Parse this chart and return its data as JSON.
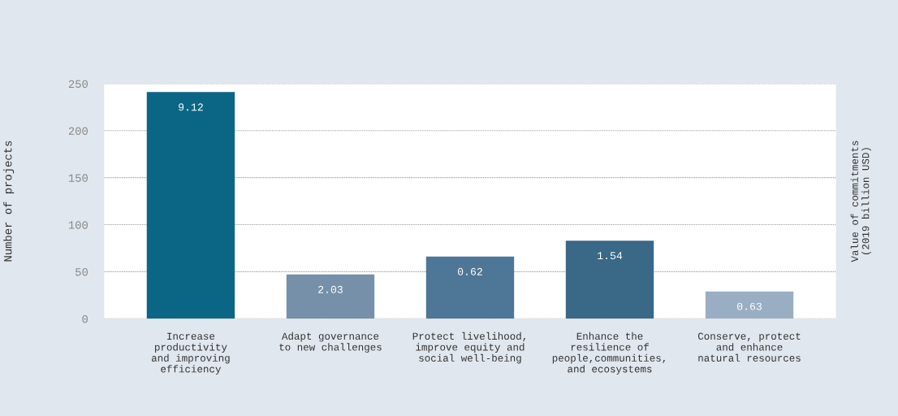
{
  "chart_data": {
    "type": "bar",
    "ylabel": "Number of projects",
    "y2label": "Value of commitments\n(2019 billion USD)",
    "categories": [
      "Increase\nproductivity\nand improving\nefficiency",
      "Adapt governance\nto new challenges",
      "Protect livelihood,\nimprove equity and\nsocial well-being",
      "Enhance the\nresilience of\npeople,communities,\nand ecosystems",
      "Conserve, protect\nand enhance\nnatural resources"
    ],
    "values": [
      241,
      47,
      66,
      83,
      29
    ],
    "colors": [
      "#0b6685",
      "#7590a8",
      "#4e7696",
      "#3a6887",
      "#9aaec3"
    ],
    "annotations": [
      "9.12",
      "2.03",
      "0.62",
      "1.54",
      "0.63"
    ],
    "ylim": [
      0,
      250
    ],
    "yticks": [
      0,
      50,
      100,
      150,
      200,
      250
    ],
    "grid": "y",
    "legend": false
  }
}
